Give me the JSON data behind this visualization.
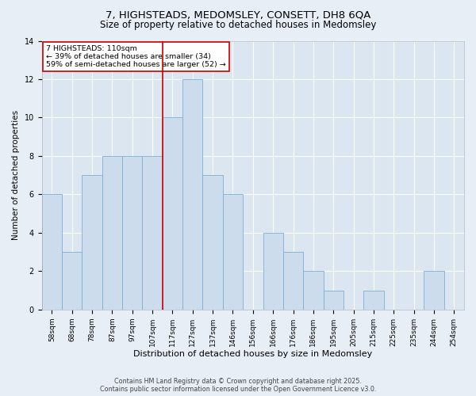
{
  "title1": "7, HIGHSTEADS, MEDOMSLEY, CONSETT, DH8 6QA",
  "title2": "Size of property relative to detached houses in Medomsley",
  "xlabel": "Distribution of detached houses by size in Medomsley",
  "ylabel": "Number of detached properties",
  "categories": [
    "58sqm",
    "68sqm",
    "78sqm",
    "87sqm",
    "97sqm",
    "107sqm",
    "117sqm",
    "127sqm",
    "137sqm",
    "146sqm",
    "156sqm",
    "166sqm",
    "176sqm",
    "186sqm",
    "195sqm",
    "205sqm",
    "215sqm",
    "225sqm",
    "235sqm",
    "244sqm",
    "254sqm"
  ],
  "values": [
    6,
    3,
    7,
    8,
    8,
    8,
    10,
    12,
    7,
    6,
    0,
    4,
    3,
    2,
    1,
    0,
    1,
    0,
    0,
    2,
    0
  ],
  "bar_color": "#ccdced",
  "bar_edge_color": "#7aafd4",
  "vline_x_index": 5.5,
  "vline_color": "#cc0000",
  "annotation_text": "7 HIGHSTEADS: 110sqm\n← 39% of detached houses are smaller (34)\n59% of semi-detached houses are larger (52) →",
  "annotation_box_color": "#cc0000",
  "ylim": [
    0,
    14
  ],
  "yticks": [
    0,
    2,
    4,
    6,
    8,
    10,
    12,
    14
  ],
  "footnote": "Contains HM Land Registry data © Crown copyright and database right 2025.\nContains public sector information licensed under the Open Government Licence v3.0.",
  "bg_color": "#e8eef5",
  "plot_bg_color": "#dce6f0",
  "grid_color": "#ffffff",
  "title_fontsize": 9.5,
  "subtitle_fontsize": 8.5,
  "tick_fontsize": 6.5,
  "xlabel_fontsize": 8,
  "ylabel_fontsize": 7.5,
  "footnote_fontsize": 5.8,
  "annotation_fontsize": 6.8
}
